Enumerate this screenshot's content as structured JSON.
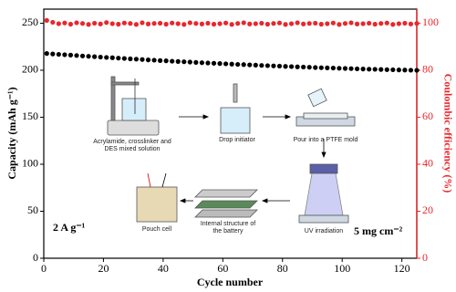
{
  "chart_data": {
    "type": "scatter",
    "xlabel": "Cycle number",
    "ylabel": "Capacity (mAh g⁻¹)",
    "y2label": "Coulombic efficiency (%)",
    "xlim": [
      0,
      125
    ],
    "xticks": [
      0,
      20,
      40,
      60,
      80,
      100,
      120
    ],
    "ylim": [
      0,
      265
    ],
    "yticks": [
      0,
      50,
      100,
      150,
      200,
      250
    ],
    "y2lim": [
      0,
      106
    ],
    "y2ticks": [
      0,
      20,
      40,
      60,
      80,
      100
    ],
    "annotations": [
      "2 A g⁻¹",
      "5 mg cm⁻²"
    ],
    "inset_labels": [
      "Acrylamide, crosslinker and DES mixed solution",
      "Drop initiator",
      "Pour into a PTFE mold",
      "UV irradiation",
      "Internal structure of the battery",
      "Pouch cell"
    ],
    "x": [
      1,
      3,
      5,
      7,
      9,
      11,
      13,
      15,
      17,
      19,
      21,
      23,
      25,
      27,
      29,
      31,
      33,
      35,
      37,
      39,
      41,
      43,
      45,
      47,
      49,
      51,
      53,
      55,
      57,
      59,
      61,
      63,
      65,
      67,
      69,
      71,
      73,
      75,
      77,
      79,
      81,
      83,
      85,
      87,
      89,
      91,
      93,
      95,
      97,
      99,
      101,
      103,
      105,
      107,
      109,
      111,
      113,
      115,
      117,
      119,
      121,
      123,
      125
    ],
    "series": [
      {
        "name": "Capacity",
        "color": "#000000",
        "axis": "y",
        "values": [
          217.8,
          217.3,
          216.9,
          216.5,
          216.1,
          215.7,
          215.2,
          214.8,
          214.4,
          214.0,
          213.6,
          213.3,
          212.9,
          212.5,
          212.1,
          211.8,
          211.4,
          211.0,
          210.7,
          210.3,
          210.0,
          209.6,
          209.3,
          209.0,
          208.7,
          208.3,
          208.0,
          207.7,
          207.4,
          207.1,
          206.8,
          206.5,
          206.2,
          206.0,
          205.7,
          205.4,
          205.1,
          204.9,
          204.6,
          204.4,
          204.1,
          203.9,
          203.6,
          203.4,
          203.2,
          202.9,
          202.7,
          202.5,
          202.3,
          202.1,
          201.9,
          201.7,
          201.5,
          201.3,
          201.1,
          201.0,
          200.8,
          200.6,
          200.5,
          200.3,
          200.2,
          200.0,
          199.9
        ]
      },
      {
        "name": "Coulombic efficiency",
        "color": "#e8262b",
        "axis": "y2",
        "values": [
          101.2,
          100.4,
          99.8,
          100.1,
          99.6,
          100.2,
          99.9,
          99.5,
          100.0,
          99.7,
          100.3,
          99.8,
          99.6,
          100.1,
          99.9,
          99.5,
          100.2,
          99.7,
          99.9,
          100.0,
          99.6,
          100.1,
          99.8,
          99.5,
          100.2,
          99.9,
          99.7,
          100.0,
          99.6,
          99.8,
          100.1,
          99.5,
          99.9,
          100.2,
          99.7,
          99.8,
          100.0,
          99.6,
          99.9,
          100.1,
          99.5,
          99.8,
          100.2,
          99.7,
          99.9,
          100.0,
          99.6,
          99.8,
          100.1,
          99.5,
          99.9,
          100.2,
          99.7,
          99.8,
          100.0,
          99.6,
          99.9,
          100.1,
          99.5,
          99.8,
          100.0,
          99.7,
          99.9
        ]
      }
    ]
  }
}
